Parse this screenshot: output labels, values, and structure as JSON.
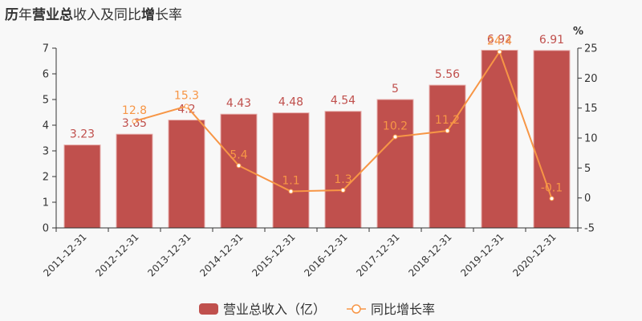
{
  "title": "历年营业总收入及同比增长率",
  "colors": {
    "bar": "#c0504d",
    "bar_label": "#c0504d",
    "line": "#f79646",
    "line_label": "#f79646",
    "axis": "#333333",
    "background": "#f8f8f8"
  },
  "legend": {
    "bar_label": "营业总收入（亿）",
    "line_label": "同比增长率"
  },
  "right_axis_unit": "%",
  "chart_data": {
    "type": "bar+line",
    "title": "历年营业总收入及同比增长率",
    "categories": [
      "2011-12-31",
      "2012-12-31",
      "2013-12-31",
      "2014-12-31",
      "2015-12-31",
      "2016-12-31",
      "2017-12-31",
      "2018-12-31",
      "2019-12-31",
      "2020-12-31"
    ],
    "series": [
      {
        "name": "营业总收入（亿）",
        "type": "bar",
        "axis": "left",
        "values": [
          3.23,
          3.65,
          4.2,
          4.43,
          4.48,
          4.54,
          5,
          5.56,
          6.92,
          6.91
        ],
        "labels": [
          "3.23",
          "3.65",
          "4.2",
          "4.43",
          "4.48",
          "4.54",
          "5",
          "5.56",
          "6.92",
          "6.91"
        ]
      },
      {
        "name": "同比增长率",
        "type": "line",
        "axis": "right",
        "values": [
          null,
          12.8,
          15.3,
          5.4,
          1.1,
          1.3,
          10.2,
          11.2,
          24.4,
          -0.1
        ],
        "labels": [
          "",
          "12.8",
          "15.3",
          "5.4",
          "1.1",
          "1.3",
          "10.2",
          "11.2",
          "24.4",
          "-0.1"
        ]
      }
    ],
    "left_axis": {
      "ylim": [
        0,
        7
      ],
      "ticks": [
        0,
        1,
        2,
        3,
        4,
        5,
        6,
        7
      ]
    },
    "right_axis": {
      "ylim": [
        -5,
        25
      ],
      "ticks": [
        -5,
        0,
        5,
        10,
        15,
        20,
        25
      ],
      "unit": "%"
    },
    "legend_position": "bottom",
    "grid": false
  }
}
